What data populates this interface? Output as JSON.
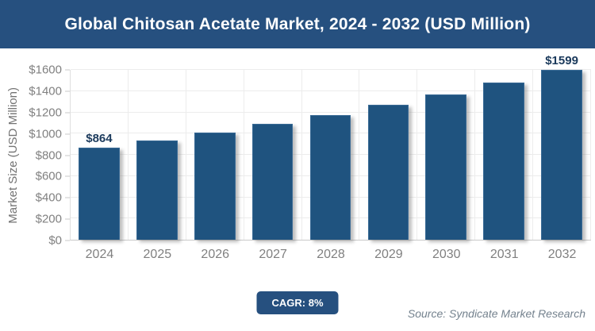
{
  "title": "Global Chitosan Acetate Market, 2024 - 2032 (USD Million)",
  "chart_data": {
    "type": "bar",
    "title": "Global Chitosan Acetate Market, 2024 - 2032 (USD Million)",
    "categories": [
      "2024",
      "2025",
      "2026",
      "2027",
      "2028",
      "2029",
      "2030",
      "2031",
      "2032"
    ],
    "values": [
      864,
      933,
      1008,
      1088,
      1176,
      1270,
      1371,
      1481,
      1599
    ],
    "data_labels": {
      "2024": "$864",
      "2032": "$1599"
    },
    "xlabel": "",
    "ylabel": "Market Size (USD Million)",
    "ylim": [
      0,
      1600
    ],
    "ytick_step": 200,
    "ytick_prefix": "$",
    "grid": true,
    "legend": false
  },
  "footer": {
    "cagr_label": "CAGR: 8%",
    "source": "Source: Syndicate Market Research"
  },
  "colors": {
    "banner": "#26507f",
    "bar": "#1f537f",
    "bar_border": "#3a6b96",
    "bar_label": "#1b3a5c",
    "badge": "#26507f",
    "grid": "#ececec",
    "axis_line": "#c9c9c9",
    "tick_text": "#808080",
    "source_text": "#74828e"
  }
}
